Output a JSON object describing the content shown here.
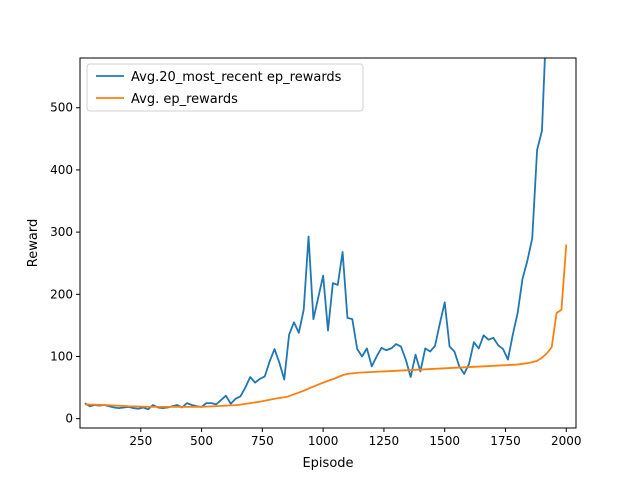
{
  "chart_data": {
    "type": "line",
    "title": "",
    "xlabel": "Episode",
    "ylabel": "Reward",
    "xlim": [
      0,
      2040
    ],
    "ylim": [
      -15,
      580
    ],
    "xticks": [
      250,
      500,
      750,
      1000,
      1250,
      1500,
      1750,
      2000
    ],
    "yticks": [
      0,
      100,
      200,
      300,
      400,
      500
    ],
    "grid": false,
    "legend": "top-left",
    "series": [
      {
        "name": "Avg.20_most_recent ep_rewards",
        "color": "#1f77b4",
        "x": [
          20,
          40,
          60,
          80,
          100,
          120,
          140,
          160,
          180,
          200,
          220,
          240,
          260,
          280,
          300,
          320,
          340,
          360,
          380,
          400,
          420,
          440,
          460,
          480,
          500,
          520,
          540,
          560,
          580,
          600,
          620,
          640,
          660,
          680,
          700,
          720,
          740,
          760,
          780,
          800,
          820,
          840,
          860,
          880,
          900,
          920,
          940,
          960,
          980,
          1000,
          1020,
          1040,
          1060,
          1080,
          1100,
          1120,
          1140,
          1160,
          1180,
          1200,
          1220,
          1240,
          1260,
          1280,
          1300,
          1320,
          1340,
          1360,
          1380,
          1400,
          1420,
          1440,
          1460,
          1480,
          1500,
          1520,
          1540,
          1560,
          1580,
          1600,
          1620,
          1640,
          1660,
          1680,
          1700,
          1720,
          1740,
          1760,
          1780,
          1800,
          1820,
          1840,
          1860,
          1880,
          1900,
          1912
        ],
        "y": [
          25,
          20,
          22,
          21,
          22,
          20,
          18,
          17,
          18,
          19,
          17,
          16,
          18,
          15,
          22,
          18,
          17,
          18,
          20,
          22,
          18,
          25,
          22,
          20,
          19,
          25,
          25,
          23,
          30,
          37,
          24,
          32,
          36,
          50,
          67,
          58,
          64,
          68,
          92,
          112,
          90,
          63,
          135,
          155,
          138,
          175,
          293,
          160,
          195,
          230,
          142,
          218,
          215,
          268,
          162,
          160,
          112,
          100,
          113,
          84,
          100,
          114,
          110,
          113,
          120,
          116,
          95,
          67,
          103,
          76,
          113,
          108,
          117,
          153,
          187,
          116,
          108,
          84,
          72,
          88,
          123,
          113,
          134,
          127,
          130,
          118,
          112,
          95,
          135,
          170,
          225,
          254,
          290,
          432,
          463,
          580
        ]
      },
      {
        "name": "Avg. ep_rewards",
        "color": "#ff7f0e",
        "x": [
          20,
          100,
          200,
          300,
          400,
          500,
          600,
          650,
          700,
          750,
          800,
          850,
          900,
          920,
          950,
          1000,
          1050,
          1080,
          1100,
          1150,
          1200,
          1300,
          1400,
          1500,
          1600,
          1700,
          1750,
          1800,
          1850,
          1880,
          1900,
          1920,
          1940,
          1960,
          1980,
          2000
        ],
        "y": [
          23,
          22,
          20,
          19,
          19,
          19,
          21,
          22,
          25,
          28,
          32,
          35,
          42,
          45,
          50,
          58,
          65,
          70,
          72,
          74,
          75,
          77,
          79,
          81,
          83,
          85,
          86,
          87,
          90,
          93,
          98,
          105,
          115,
          170,
          175,
          280
        ]
      }
    ]
  }
}
